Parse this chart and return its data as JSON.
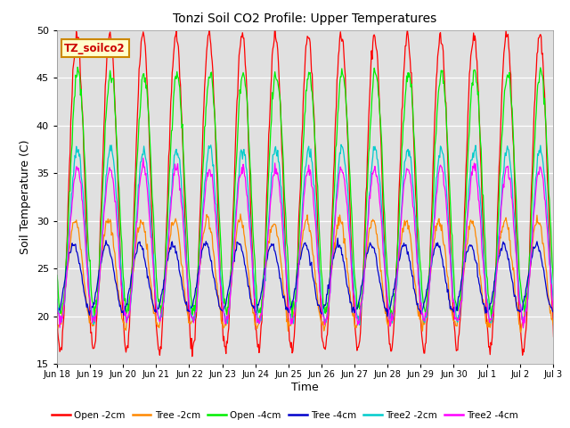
{
  "title": "Tonzi Soil CO2 Profile: Upper Temperatures",
  "xlabel": "Time",
  "ylabel": "Soil Temperature (C)",
  "ylim": [
    15,
    50
  ],
  "background_color": "#ffffff",
  "plot_bg_color": "#e0e0e0",
  "annotation_text": "TZ_soilco2",
  "annotation_color": "#cc0000",
  "annotation_bg": "#ffffcc",
  "annotation_border": "#cc8800",
  "series": [
    {
      "label": "Open -2cm",
      "color": "#ff0000"
    },
    {
      "label": "Tree -2cm",
      "color": "#ff8800"
    },
    {
      "label": "Open -4cm",
      "color": "#00ee00"
    },
    {
      "label": "Tree -4cm",
      "color": "#0000cc"
    },
    {
      "label": "Tree2 -2cm",
      "color": "#00cccc"
    },
    {
      "label": "Tree2 -4cm",
      "color": "#ff00ff"
    }
  ],
  "x_tick_labels": [
    "Jun 18",
    "Jun 19",
    "Jun 20",
    "Jun 21",
    "Jun 22",
    "Jun 23",
    "Jun 24",
    "Jun 25",
    "Jun 26",
    "Jun 27",
    "Jun 28",
    "Jun 29",
    "Jun 30",
    "Jul 1",
    "Jul 2",
    "Jul 3"
  ],
  "num_days": 16,
  "points_per_day": 48,
  "yticks": [
    15,
    20,
    25,
    30,
    35,
    40,
    45,
    50
  ]
}
